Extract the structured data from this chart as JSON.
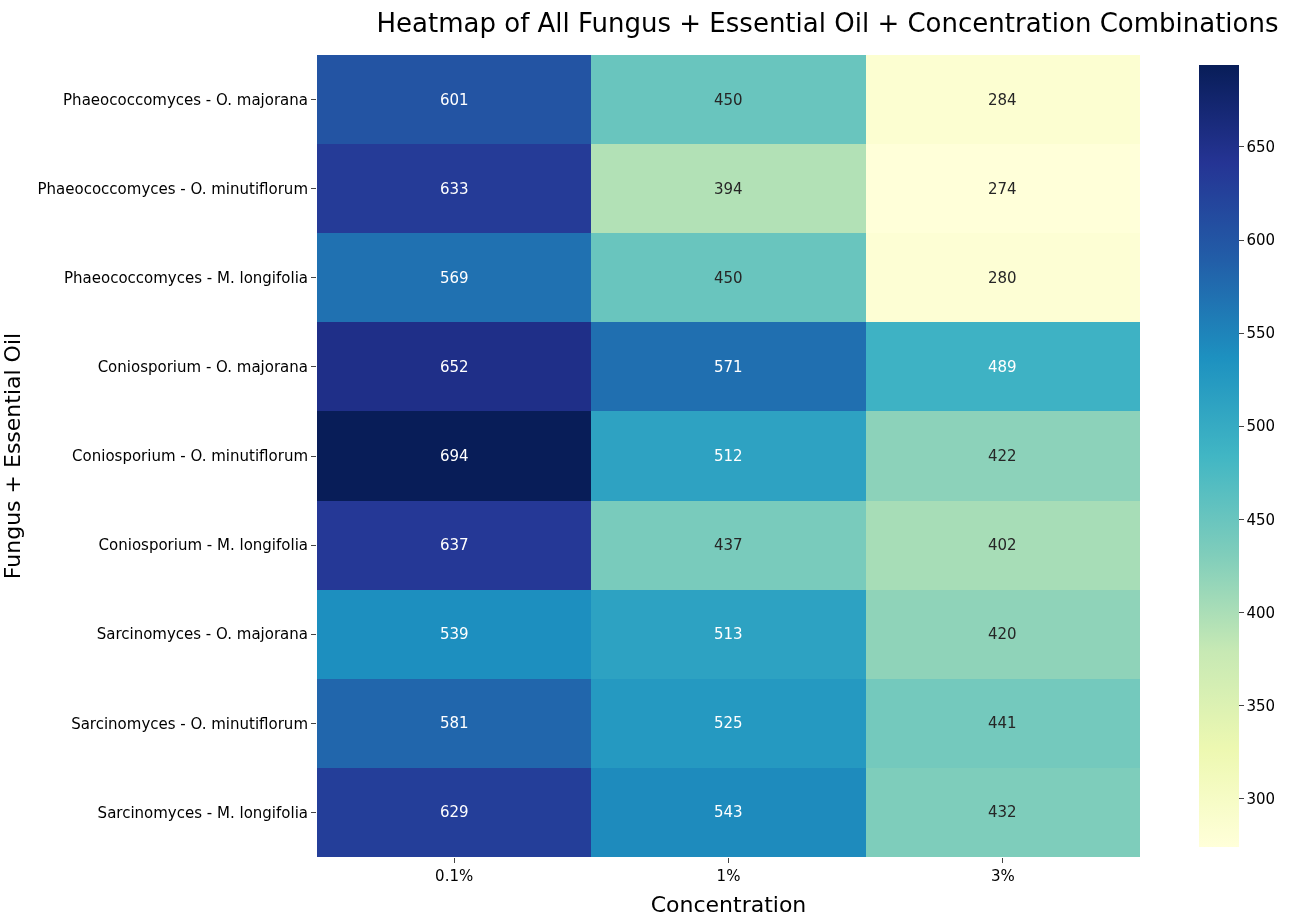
{
  "chart_data": {
    "type": "heatmap",
    "title": "Heatmap of All Fungus + Essential Oil + Concentration Combinations",
    "xlabel": "Concentration",
    "ylabel": "Fungus + Essential Oil",
    "categories": [
      "0.1%",
      "1%",
      "3%"
    ],
    "y_categories": [
      "Phaeococcomyces - O. majorana",
      "Phaeococcomyces - O. minutiflorum",
      "Phaeococcomyces - M. longifolia",
      "Coniosporium - O. majorana",
      "Coniosporium - O. minutiflorum",
      "Coniosporium - M. longifolia",
      "Sarcinomyces - O. majorana",
      "Sarcinomyces - O. minutiflorum",
      "Sarcinomyces - M. longifolia"
    ],
    "cells": [
      [
        601,
        450,
        284
      ],
      [
        633,
        394,
        274
      ],
      [
        569,
        450,
        280
      ],
      [
        652,
        571,
        489
      ],
      [
        694,
        512,
        422
      ],
      [
        637,
        437,
        402
      ],
      [
        539,
        513,
        420
      ],
      [
        581,
        525,
        441
      ],
      [
        629,
        543,
        432
      ]
    ],
    "clim": [
      274,
      694
    ],
    "cticks": [
      300,
      350,
      400,
      450,
      500,
      550,
      600,
      650
    ],
    "data_labels": true
  }
}
